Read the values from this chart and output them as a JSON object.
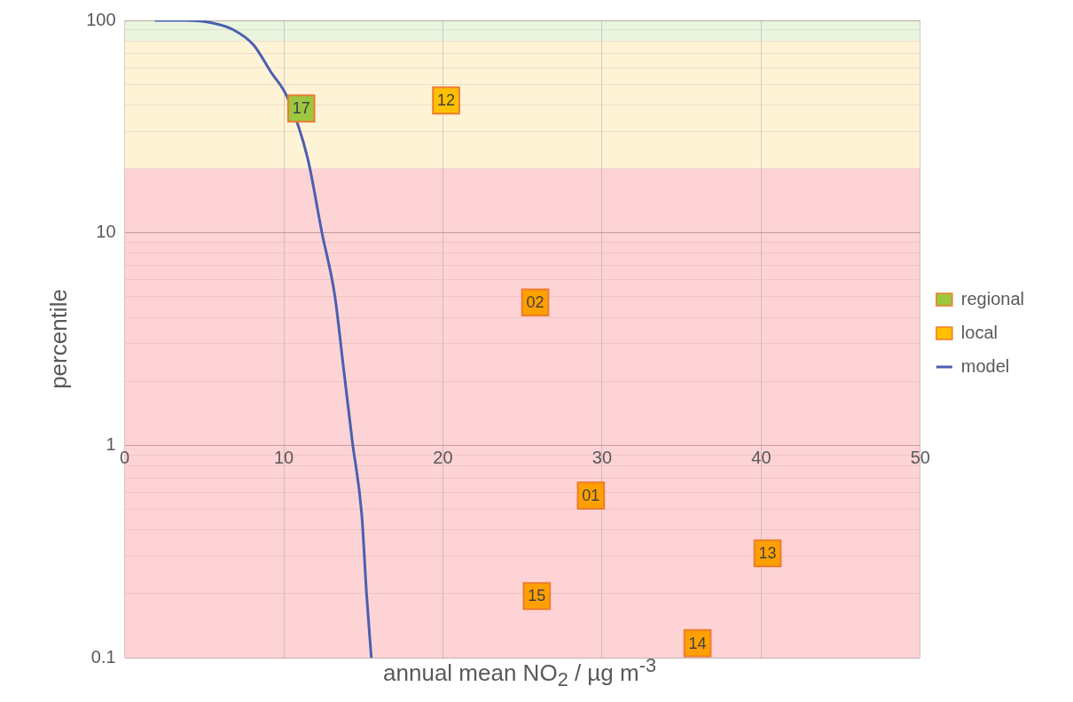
{
  "chart_data": {
    "type": "scatter",
    "xlabel": "annual mean NO$_{2}$ / µg m$^{-3}$",
    "ylabel": "percentile",
    "annotations": [
      {
        "text": "17",
        "x": 11.1,
        "y": 38.5
      },
      {
        "text": "12",
        "x": 20.2,
        "y": 42
      },
      {
        "text": "02",
        "x": 25.8,
        "y": 4.7
      },
      {
        "text": "01",
        "x": 29.3,
        "y": 0.58
      },
      {
        "text": "13",
        "x": 40.4,
        "y": 0.31
      },
      {
        "text": "15",
        "x": 25.9,
        "y": 0.195
      },
      {
        "text": "14",
        "x": 36.0,
        "y": 0.117
      }
    ],
    "log": "y",
    "grid": true,
    "legend": "right",
    "marker": "square",
    "xlim": [
      0,
      50
    ],
    "xticks": [
      0,
      10,
      20,
      30,
      40,
      50
    ],
    "ylim": [
      0.1,
      100
    ],
    "yticks": [
      0.1,
      {
        "value": 0.2,
        "label": null
      },
      {
        "value": 0.3,
        "label": null
      },
      {
        "value": 0.4,
        "label": null
      },
      {
        "value": 0.5,
        "label": null
      },
      {
        "value": 0.6,
        "label": null
      },
      {
        "value": 0.7,
        "label": null
      },
      {
        "value": 0.8,
        "label": null
      },
      {
        "value": 0.9,
        "label": null
      },
      1,
      {
        "value": 2,
        "label": null
      },
      {
        "value": 3,
        "label": null
      },
      {
        "value": 4,
        "label": null
      },
      {
        "value": 5,
        "label": null
      },
      {
        "value": 6,
        "label": null
      },
      {
        "value": 7,
        "label": null
      },
      {
        "value": 8,
        "label": null
      },
      {
        "value": 9,
        "label": null
      },
      10,
      {
        "value": 20,
        "label": null
      },
      {
        "value": 30,
        "label": null
      },
      {
        "value": 40,
        "label": null
      },
      {
        "value": 50,
        "label": null
      },
      {
        "value": 60,
        "label": null
      },
      {
        "value": 70,
        "label": null
      },
      {
        "value": 80,
        "label": null
      },
      {
        "value": 90,
        "label": null
      },
      100
    ],
    "bands": [
      {
        "axis": "y",
        "from": 80,
        "to": 100,
        "color": "#e9f5df"
      },
      {
        "axis": "y",
        "from": 20,
        "to": 80,
        "color": "#fff3d6"
      },
      {
        "axis": "y",
        "from": 0.1,
        "to": 20,
        "color": "#fdd3d5"
      }
    ],
    "series": [
      {
        "name": "regional",
        "type": "scatter",
        "color": "#9dc73f",
        "x": [
          11.1
        ],
        "values": [
          38.5
        ]
      },
      {
        "name": "local",
        "type": "scatter",
        "color": "#ffc000",
        "colors": [
          "#ffc000",
          "#ffa000",
          "#ffa000",
          "#ffa000",
          "#ffa000",
          "#ffa000"
        ],
        "x": [
          20.2,
          25.8,
          29.3,
          40.4,
          25.9,
          36.0
        ],
        "values": [
          42,
          4.7,
          0.58,
          0.31,
          0.195,
          0.117
        ]
      },
      {
        "name": "model",
        "type": "line",
        "color": "#4a5fb0",
        "marker": "none",
        "x": [
          1.9,
          3.8,
          5.6,
          6.8,
          8.1,
          9.2,
          10.2,
          11.5,
          12.4,
          13.2,
          13.7,
          14.3,
          14.9,
          15.2,
          15.5
        ],
        "values": [
          100,
          100,
          97,
          90.6,
          76.6,
          57,
          43.8,
          22.4,
          10,
          5.1,
          2.5,
          1.05,
          0.47,
          0.2,
          0.1
        ]
      }
    ]
  }
}
